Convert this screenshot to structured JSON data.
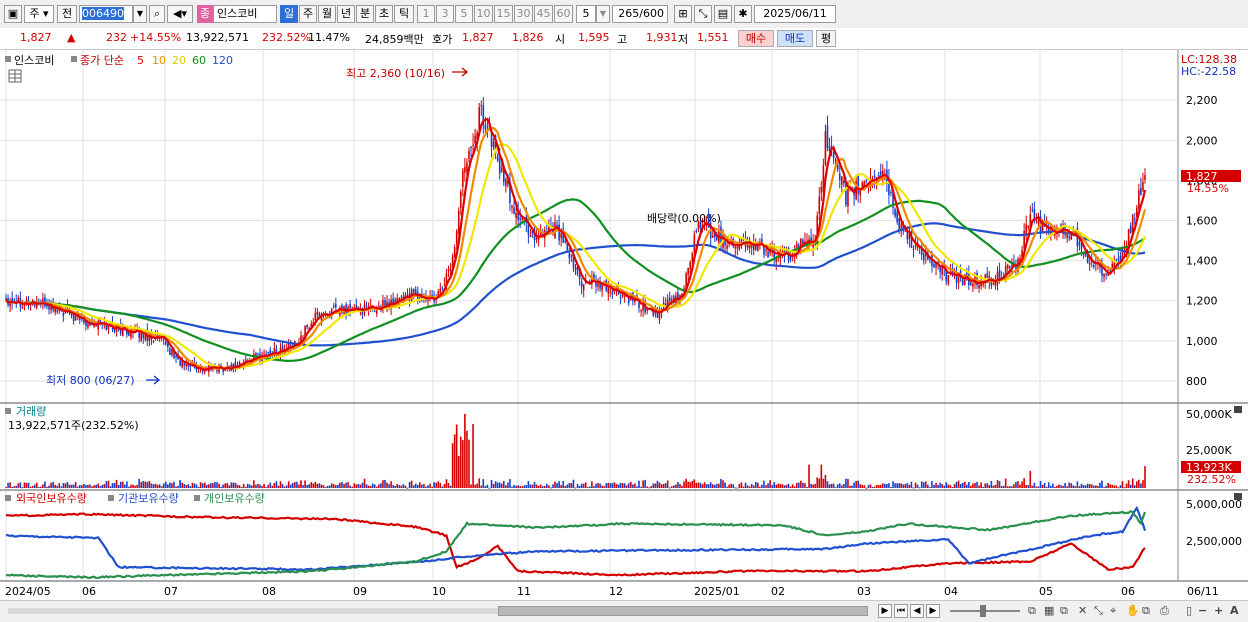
{
  "toolbar": {
    "period_main": "주",
    "prev_label": "전",
    "code": "006490",
    "name_badge": "종",
    "name": "인스코비",
    "periods": [
      "일",
      "주",
      "월",
      "년",
      "분",
      "초",
      "틱"
    ],
    "active_period": "일",
    "minutes": [
      "1",
      "3",
      "5",
      "10",
      "15",
      "30",
      "45",
      "60"
    ],
    "count_value": "5",
    "bars": "265",
    "bars_total": "/600",
    "date": "2025/06/11"
  },
  "quote": {
    "price": "1,827",
    "arrow": "▲",
    "change": "232",
    "change_pct": "+14.55%",
    "volume": "13,922,571",
    "volume_ratio": "232.52%",
    "turnover": "11.47%",
    "amount": "24,859백만",
    "hoga_label": "호가",
    "ask": "1,827",
    "bid": "1,826",
    "open_label": "시",
    "open": "1,595",
    "high_label": "고",
    "high": "1,931",
    "low_label": "저",
    "low": "1,551",
    "buy": "매수",
    "sell": "매도",
    "eval": "평"
  },
  "legend": {
    "name": "인스코비",
    "ma_label": "종가 단순",
    "ma_periods": [
      "5",
      "10",
      "20",
      "60",
      "120"
    ],
    "ma_colors": [
      "#e00000",
      "#f08a00",
      "#f0e800",
      "#109020",
      "#2050d0"
    ]
  },
  "annotations": {
    "high": "최고 2,360 (10/16)",
    "low": "최저 800 (06/27)",
    "dividend": "배당락(0.00%)",
    "lc": "LC:128.38",
    "hc": "HC:-22.58",
    "last_price": "1,827",
    "last_pct": "14.55%"
  },
  "volume_panel": {
    "title": "거래량",
    "value": "13,922,571주(232.52%)",
    "last": "13,923K",
    "last_pct": "232.52%",
    "axis": [
      "50,000K",
      "25,000K"
    ]
  },
  "holder_panel": {
    "series": [
      "외국인보유수량",
      "기관보유수량",
      "개인보유수량"
    ],
    "colors": [
      "#d40000",
      "#2050d0",
      "#2a9050"
    ],
    "axis": [
      "5,000,000",
      "2,500,000"
    ]
  },
  "x_axis": [
    "2024/05",
    "06",
    "07",
    "08",
    "09",
    "10",
    "11",
    "12",
    "2025/01",
    "02",
    "03",
    "04",
    "05",
    "06",
    "06/11"
  ],
  "chart_data": {
    "type": "candlestick",
    "y_ticks": [
      800,
      1000,
      1200,
      1400,
      1600,
      1800,
      2000,
      2200
    ],
    "ylim": [
      700,
      2450
    ],
    "anchors_close": [
      [
        0,
        1210
      ],
      [
        20,
        1180
      ],
      [
        35,
        1110
      ],
      [
        55,
        1060
      ],
      [
        75,
        1010
      ],
      [
        85,
        890
      ],
      [
        95,
        860
      ],
      [
        110,
        870
      ],
      [
        125,
        930
      ],
      [
        140,
        970
      ],
      [
        152,
        1130
      ],
      [
        165,
        1150
      ],
      [
        180,
        1160
      ],
      [
        195,
        1230
      ],
      [
        210,
        1200
      ],
      [
        218,
        1400
      ],
      [
        224,
        1900
      ],
      [
        232,
        2150
      ],
      [
        240,
        1900
      ],
      [
        248,
        1650
      ],
      [
        258,
        1520
      ],
      [
        268,
        1580
      ],
      [
        280,
        1300
      ],
      [
        295,
        1260
      ],
      [
        308,
        1180
      ],
      [
        318,
        1140
      ],
      [
        330,
        1230
      ],
      [
        338,
        1600
      ],
      [
        350,
        1500
      ],
      [
        365,
        1480
      ],
      [
        380,
        1410
      ],
      [
        395,
        1530
      ],
      [
        400,
        2000
      ],
      [
        410,
        1720
      ],
      [
        420,
        1790
      ],
      [
        428,
        1850
      ],
      [
        436,
        1570
      ],
      [
        446,
        1450
      ],
      [
        458,
        1330
      ],
      [
        470,
        1300
      ],
      [
        482,
        1300
      ],
      [
        494,
        1380
      ],
      [
        500,
        1640
      ],
      [
        508,
        1540
      ],
      [
        516,
        1560
      ],
      [
        522,
        1520
      ],
      [
        530,
        1390
      ],
      [
        538,
        1330
      ],
      [
        544,
        1390
      ],
      [
        550,
        1600
      ],
      [
        556,
        1827
      ]
    ],
    "n": 557
  }
}
